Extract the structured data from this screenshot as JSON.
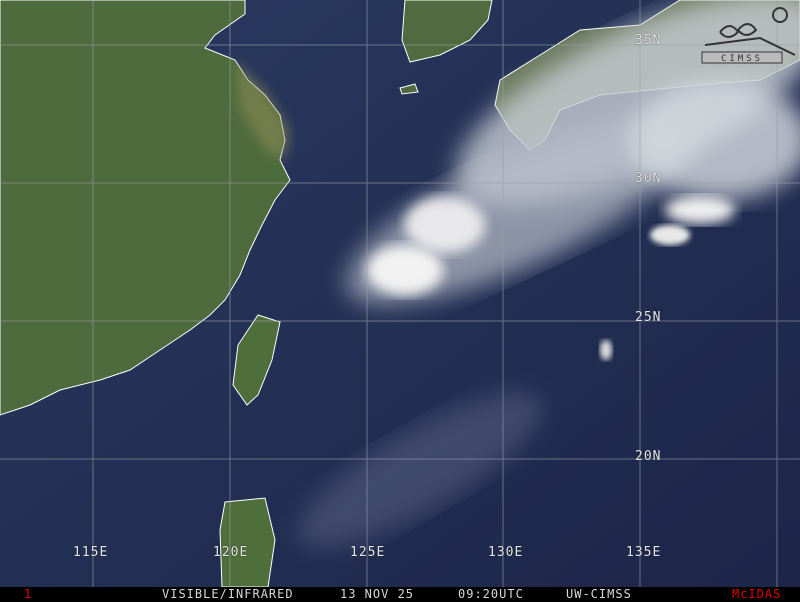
{
  "map": {
    "latitude_labels": [
      "35N",
      "30N",
      "25N",
      "20N"
    ],
    "longitude_labels": [
      "115E",
      "120E",
      "125E",
      "130E",
      "135E"
    ],
    "logo_text": "CIMSS"
  },
  "status_bar": {
    "frame": "1",
    "product": "VISIBLE/INFRARED",
    "date": "13 NOV 25",
    "time": "09:20UTC",
    "source": "UW-CIMSS",
    "software": "McIDAS"
  },
  "colors": {
    "ocean": "#1f2a4e",
    "land": "#4a6a3a",
    "coastline": "#ffffff",
    "frame_text": "#e00000",
    "software_text": "#e00000"
  }
}
